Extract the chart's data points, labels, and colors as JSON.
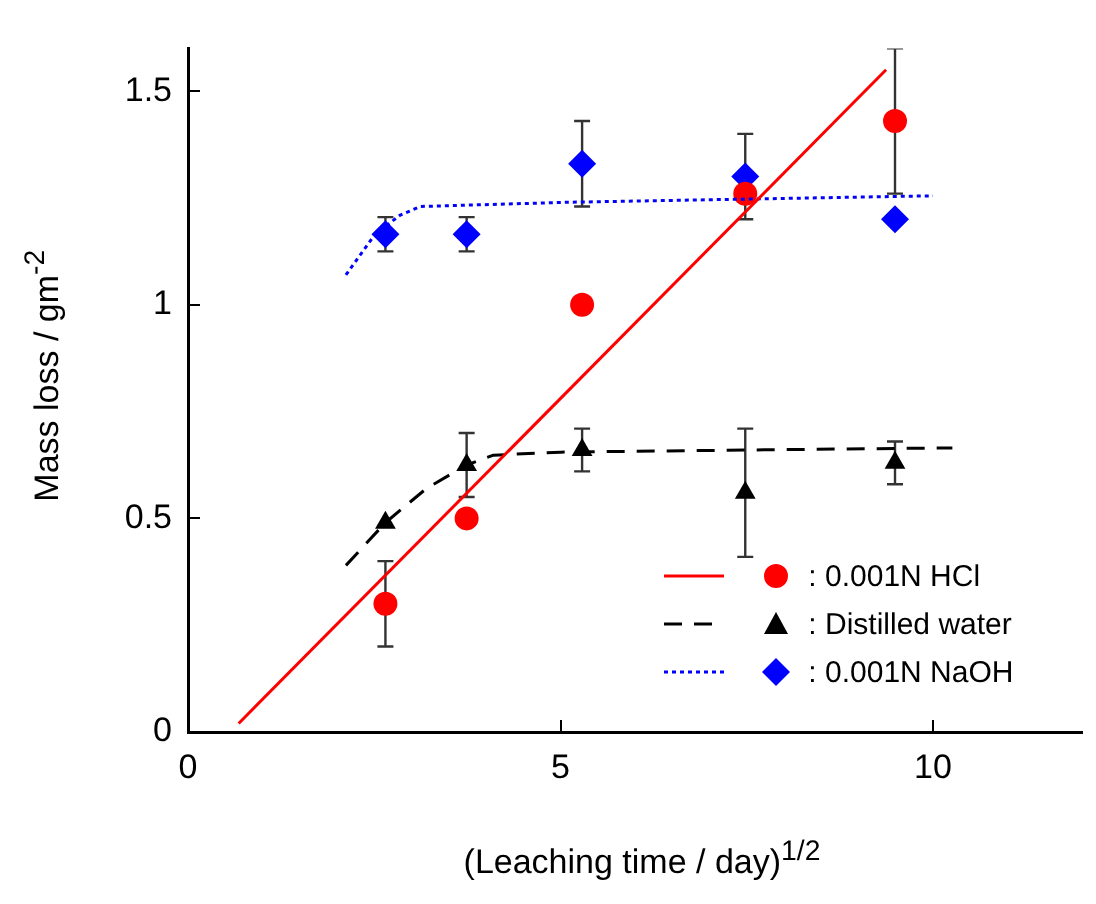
{
  "chart_data": {
    "type": "scatter",
    "xlabel": "(Leaching time / day)$^{1/2}$",
    "ylabel": "Mass loss / gm$^{-2}$",
    "xlim": [
      0,
      12
    ],
    "xticks": [
      0,
      5,
      10
    ],
    "ylim": [
      0,
      1.6
    ],
    "yticks": [
      0,
      0.5,
      1,
      1.5
    ],
    "grid": false,
    "legend": "bottom right",
    "series": [
      {
        "type": "line",
        "color": "#ff0000",
        "line_style": "solid",
        "marker": "none",
        "x": [
          0.68,
          9.37
        ],
        "values": [
          0.02,
          1.55
        ]
      },
      {
        "type": "line",
        "color": "#000000",
        "line_style": "dashed",
        "marker": "none",
        "x": [
          2.12,
          2.65,
          3.2,
          3.74,
          4.1,
          5,
          7.5,
          10.26
        ],
        "values": [
          0.39,
          0.49,
          0.57,
          0.625,
          0.648,
          0.655,
          0.66,
          0.665
        ]
      },
      {
        "type": "line",
        "color": "#0000ff",
        "line_style": "dotted",
        "marker": "none",
        "x": [
          2.12,
          2.51,
          2.85,
          3.12,
          5.13,
          10
        ],
        "values": [
          1.07,
          1.165,
          1.21,
          1.23,
          1.24,
          1.255
        ]
      },
      {
        "name": ": 0.001N HCl",
        "color": "#ff0000",
        "marker": "circle",
        "x": [
          2.65,
          3.74,
          5.29,
          7.48,
          9.49
        ],
        "values": [
          0.3,
          0.5,
          1.0,
          1.26,
          1.43
        ],
        "errors": [
          0.1,
          null,
          null,
          null,
          0.17
        ]
      },
      {
        "name": ": Distilled water",
        "color": "#000000",
        "marker": "triangle",
        "x": [
          2.65,
          3.74,
          5.29,
          7.48,
          9.49
        ],
        "values": [
          0.49,
          0.625,
          0.66,
          0.56,
          0.63
        ],
        "errors": [
          null,
          0.075,
          0.05,
          0.15,
          0.05
        ]
      },
      {
        "name": ": 0.001N NaOH",
        "color": "#0000ff",
        "marker": "diamond",
        "x": [
          2.65,
          3.74,
          5.29,
          7.48,
          9.49
        ],
        "values": [
          1.165,
          1.165,
          1.33,
          1.3,
          1.2
        ],
        "errors": [
          0.04,
          0.04,
          0.1,
          0.1,
          null
        ]
      }
    ]
  }
}
